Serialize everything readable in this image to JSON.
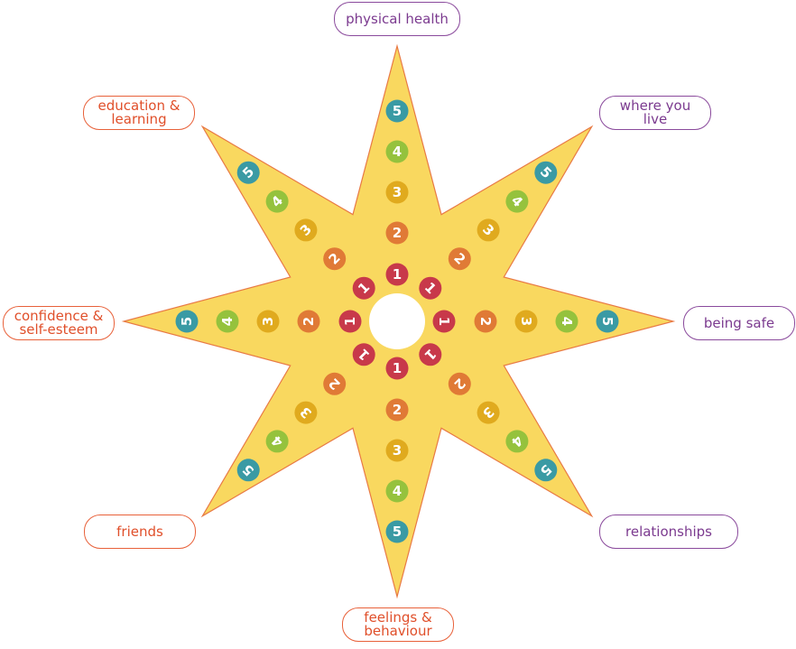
{
  "colors": {
    "star_fill": "#f9d85f",
    "star_stroke": "#e87a45",
    "level_1": "#c8394a",
    "level_2": "#e07a36",
    "level_3": "#e0aa1e",
    "level_4": "#95c23d",
    "level_5": "#3a9aa4"
  },
  "levels": [
    "1",
    "2",
    "3",
    "4",
    "5"
  ],
  "spokes": [
    {
      "label": "physical health",
      "direction": "up",
      "style": "purple"
    },
    {
      "label": "where you\nlive",
      "direction": "up-right",
      "style": "purple"
    },
    {
      "label": "being safe",
      "direction": "right",
      "style": "purple"
    },
    {
      "label": "relationships",
      "direction": "down-right",
      "style": "purple"
    },
    {
      "label": "feelings &\nbehaviour",
      "direction": "down",
      "style": "orange"
    },
    {
      "label": "friends",
      "direction": "down-left",
      "style": "orange"
    },
    {
      "label": "confidence &\nself-esteem",
      "direction": "left",
      "style": "orange"
    },
    {
      "label": "education &\nlearning",
      "direction": "up-left",
      "style": "orange"
    }
  ]
}
